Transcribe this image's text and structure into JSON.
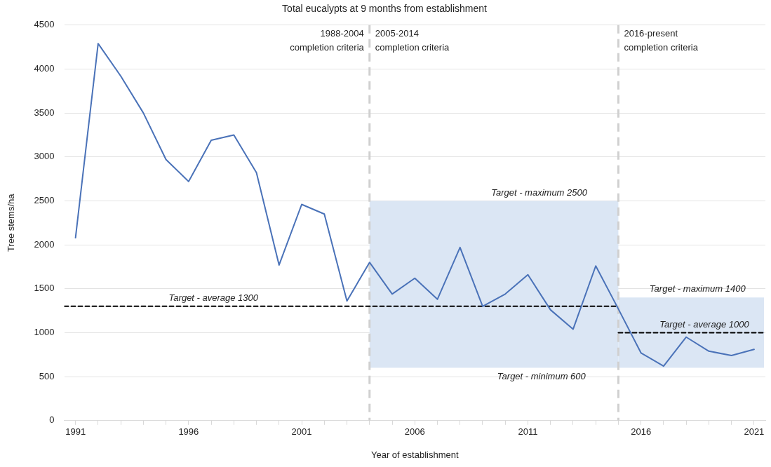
{
  "chart_data": {
    "type": "line",
    "title": "Total eucalypts at 9 months from establishment",
    "xlabel": "Year of establishment",
    "ylabel": "Tree stems/ha",
    "x": [
      1991,
      1992,
      1993,
      1994,
      1995,
      1996,
      1997,
      1998,
      1999,
      2000,
      2001,
      2002,
      2003,
      2004,
      2005,
      2006,
      2007,
      2008,
      2009,
      2010,
      2011,
      2012,
      2013,
      2014,
      2015,
      2016,
      2017,
      2018,
      2019,
      2020,
      2021
    ],
    "series": [
      {
        "color": "#4a72b8",
        "values": [
          2080,
          4290,
          3920,
          3500,
          2970,
          2720,
          3190,
          3250,
          2820,
          1770,
          2460,
          2350,
          1360,
          1800,
          1440,
          1620,
          1380,
          1970,
          1300,
          1440,
          1660,
          1260,
          1040,
          1760,
          1270,
          770,
          620,
          950,
          790,
          740,
          810
        ]
      },
      {
        "color": "#000000",
        "line_style": "dashed",
        "x": [
          1990.5,
          2015
        ],
        "values": [
          1300,
          1300
        ]
      },
      {
        "color": "#000000",
        "line_style": "dashed",
        "x": [
          2015,
          2021.5
        ],
        "values": [
          1000,
          1000
        ]
      }
    ],
    "xlim": [
      1990.5,
      2021.5
    ],
    "xticks": [
      1991,
      {
        "value": 1992,
        "label": null
      },
      {
        "value": 1993,
        "label": null
      },
      {
        "value": 1994,
        "label": null
      },
      {
        "value": 1995,
        "label": null
      },
      1996,
      {
        "value": 1997,
        "label": null
      },
      {
        "value": 1998,
        "label": null
      },
      {
        "value": 1999,
        "label": null
      },
      {
        "value": 2000,
        "label": null
      },
      2001,
      {
        "value": 2002,
        "label": null
      },
      {
        "value": 2003,
        "label": null
      },
      {
        "value": 2004,
        "label": null
      },
      {
        "value": 2005,
        "label": null
      },
      2006,
      {
        "value": 2007,
        "label": null
      },
      {
        "value": 2008,
        "label": null
      },
      {
        "value": 2009,
        "label": null
      },
      {
        "value": 2010,
        "label": null
      },
      2011,
      {
        "value": 2012,
        "label": null
      },
      {
        "value": 2013,
        "label": null
      },
      {
        "value": 2014,
        "label": null
      },
      {
        "value": 2015,
        "label": null
      },
      2016,
      {
        "value": 2017,
        "label": null
      },
      {
        "value": 2018,
        "label": null
      },
      {
        "value": 2019,
        "label": null
      },
      {
        "value": 2020,
        "label": null
      },
      2021
    ],
    "ylim": [
      0,
      4500
    ],
    "yticks": [
      0,
      500,
      1000,
      1500,
      2000,
      2500,
      3000,
      3500,
      4000,
      4500
    ],
    "grid": "y",
    "legend": false,
    "marker": "none",
    "line_style": "solid",
    "ref_lines": [
      {
        "axis": "x",
        "value": 2004,
        "color": "#d0d0d0",
        "line_style": "dashed"
      },
      {
        "axis": "x",
        "value": 2015,
        "color": "#d0d0d0",
        "line_style": "dashed"
      }
    ],
    "bands": [
      {
        "axis": "y",
        "from": 600,
        "to": 2500,
        "color": "#dbe6f4"
      },
      {
        "axis": "y",
        "from": 600,
        "to": 1400,
        "color": "#dbe6f4"
      }
    ],
    "annotations": [
      "1988-2004\ncompletion criteria",
      "2005-2014\ncompletion criteria",
      "2016-present\ncompletion criteria",
      {
        "text": "Target - average 1300",
        "x": 1997.1,
        "y": 1300
      },
      {
        "text": "Target - maximum 2500",
        "x": 2011.5,
        "y": 2500
      },
      {
        "text": "Target - minimum 600",
        "x": 2011.6,
        "y": 600
      },
      {
        "text": "Target - maximum 1400",
        "x": 2018.5,
        "y": 1400
      },
      {
        "text": "Target - average 1000",
        "x": 2018.8,
        "y": 1000
      }
    ]
  }
}
